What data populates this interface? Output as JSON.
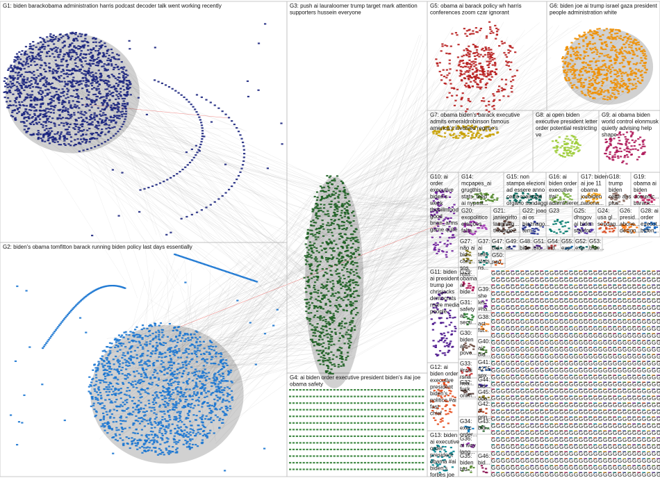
{
  "groups": [
    {
      "id": "g1",
      "label_lines": [
        "G1: biden barackobama administration harris podcast decoder talk went working recently"
      ],
      "color": "#1a237e"
    },
    {
      "id": "g2",
      "label_lines": [
        "G2: biden's obama tomfitton barack running biden policy last days essentially"
      ],
      "color": "#1976d2"
    },
    {
      "id": "g3",
      "label_lines": [
        "G3: push ai lauraloomer trump target mark attention",
        "supporters hussein everyone"
      ],
      "color": "#1b5e20"
    },
    {
      "id": "g4",
      "label_lines": [
        "G4: ai biden order executive president biden's #ai joe",
        "obama safety"
      ],
      "color": "#2e7d32"
    },
    {
      "id": "g5",
      "label_lines": [
        "G5: obama ai barack policy wh harris",
        "conferences zoom czar ignorant"
      ],
      "color": "#b71c1c"
    },
    {
      "id": "g6",
      "label_lines": [
        "G6: biden joe ai trump israel gaza president",
        "people administration white"
      ],
      "color": "#ef8f00"
    },
    {
      "id": "g7",
      "label_lines": [
        "G7: obama biden's barack executive",
        "admits emeraldrobinson famous",
        "america's involved regime's"
      ],
      "color": "#c8a000"
    },
    {
      "id": "g8",
      "label_lines": [
        "G8: ai open biden",
        "executive president letter",
        "order potential restricting",
        "ve"
      ],
      "color": "#9ccc35"
    },
    {
      "id": "g9",
      "label_lines": [
        "G9: ai obama biden",
        "world control elonmusk",
        "quietly advising help",
        "shape"
      ],
      "color": "#ad1457"
    },
    {
      "id": "g10",
      "label_lines": [
        "G10: ai",
        "order",
        "executive",
        "biden's",
        "week",
        "thebillmood",
        "good",
        "brian_arms",
        "game quite"
      ],
      "color": "#6a1b9a"
    },
    {
      "id": "g11",
      "label_lines": [
        "G11: biden",
        "ai president",
        "trump joe",
        "chrisjacks",
        "democrats",
        "more media",
        "people"
      ],
      "color": "#4a148c"
    },
    {
      "id": "g12",
      "label_lines": [
        "G12: ai",
        "biden order",
        "executive",
        "president",
        "biden's",
        "politico #ai",
        "fast",
        "chief"
      ],
      "color": "#e64a19"
    },
    {
      "id": "g13",
      "label_lines": [
        "G13: biden",
        "ai executive",
        "order",
        "president",
        "obama #ai",
        "biden's",
        "forbes joe"
      ],
      "color": "#00838f"
    },
    {
      "id": "g14",
      "label_lines": [
        "G14:",
        "mcpapes_ai",
        "grugthis",
        "stats_feed",
        "ai nypost..."
      ],
      "color": "#558b2f"
    },
    {
      "id": "g15",
      "label_lines": [
        "G15: non",
        "stampa elezioni",
        "ad essere anno",
        "certo realizzati",
        "organo sondaggi"
      ],
      "color": "#00695c"
    },
    {
      "id": "g16",
      "label_lines": [
        "G16: ai",
        "biden order",
        "executive",
        "#ai",
        "adamthierer..."
      ],
      "color": "#7cb342"
    },
    {
      "id": "g17",
      "label_lines": [
        "G17: biden",
        "ai joe 11",
        "obama",
        "joebiden",
        "nationa..."
      ],
      "color": "#f9a825"
    },
    {
      "id": "g18",
      "label_lines": [
        "G18:",
        "trump",
        "biden",
        "cette ans",
        "plus..."
      ],
      "color": "#8d6e63"
    },
    {
      "id": "g19",
      "label_lines": [
        "G19:",
        "obama ai",
        "biden",
        "domenic...",
        "barack..."
      ],
      "color": "#c2185b"
    },
    {
      "id": "g20",
      "label_lines": [
        "G20:",
        "exopolitico",
        "eleições",
        "falta..."
      ],
      "color": "#9c27b0"
    },
    {
      "id": "g21",
      "label_lines": [
        "G21:",
        "janiegirlto",
        "laughing...",
        "thesage2..."
      ],
      "color": "#5d4037"
    },
    {
      "id": "g22",
      "label_lines": [
        "G22: joao",
        "ai os",
        "biaznago...",
        "tem..."
      ],
      "color": "#283593"
    },
    {
      "id": "g23",
      "label_lines": [
        "G23"
      ],
      "color": "#00796b"
    },
    {
      "id": "g24",
      "label_lines": [
        "G24:",
        "usa gl...",
        "sondag..."
      ],
      "color": "#d84315"
    },
    {
      "id": "g25",
      "label_lines": [
        "G25:",
        "dhsgov",
        "ai biden",
        "stanfor..."
      ],
      "color": "#512da8"
    },
    {
      "id": "g26",
      "label_lines": [
        "G26:",
        "presid...",
        "abcne...",
        "design..."
      ],
      "color": "#ff6f00"
    },
    {
      "id": "g27",
      "label_lines": [
        "G27:",
        "não ai",
        "bid...",
        "cam...",
        "sos",
        "mas..."
      ],
      "color": "#827717"
    },
    {
      "id": "g28",
      "label_lines": [
        "G28: ai",
        "order",
        "execut...",
        "biden..."
      ],
      "color": "#1565c0"
    },
    {
      "id": "g29",
      "label_lines": [
        "G29:",
        "obama",
        "ai",
        "bide..."
      ],
      "color": "#ad1457"
    },
    {
      "id": "g30",
      "label_lines": [
        "G30:",
        "biden",
        "ai",
        "povo..."
      ],
      "color": "#6d4c41"
    },
    {
      "id": "g31",
      "label_lines": [
        "G31:",
        "safety",
        "ai",
        "secu..."
      ],
      "color": "#2e7d32"
    },
    {
      "id": "g32",
      "label_lines": [
        "G32:",
        "fuck",
        "onlin..."
      ],
      "color": "#4e342e"
    },
    {
      "id": "g33",
      "label_lines": [
        "G33:",
        "#radi",
        "rsna",
        "hea..."
      ],
      "color": "#c62828"
    },
    {
      "id": "g34",
      "label_lines": [
        "G34:",
        "exec",
        "order..."
      ],
      "color": "#0277bd"
    },
    {
      "id": "g35",
      "label_lines": [
        "G35:",
        "biden",
        "bid..."
      ],
      "color": "#558b2f"
    },
    {
      "id": "g36",
      "label_lines": [
        "G36:",
        "ai way",
        "lang..."
      ],
      "color": "#8e24aa"
    },
    {
      "id": "g37",
      "label_lines": [
        "G37:",
        "ai",
        "tells",
        "stats_...",
        "ns..."
      ],
      "color": "#00897b"
    },
    {
      "id": "g38",
      "label_lines": [
        "G38:",
        "act",
        "fut..."
      ],
      "color": "#f57f17"
    },
    {
      "id": "g39",
      "label_lines": [
        "G39:",
        "she",
        "les",
        "#ha..."
      ],
      "color": "#6a1b9a"
    },
    {
      "id": "g40",
      "label_lines": [
        "G40:",
        "ai",
        "bid..."
      ],
      "color": "#33691e"
    },
    {
      "id": "g41",
      "label_lines": [
        "G41:",
        "4275",
        "spx"
      ],
      "color": "#0d47a1"
    },
    {
      "id": "g42",
      "label_lines": [
        "G42:",
        "ai",
        "prin..."
      ],
      "color": "#bf360c"
    },
    {
      "id": "g43",
      "label_lines": [
        "G43:",
        "bid..."
      ],
      "color": "#1b5e20"
    },
    {
      "id": "g44",
      "label_lines": [
        "G44:",
        "bid..."
      ],
      "color": "#311b92"
    },
    {
      "id": "g45",
      "label_lines": [
        "G45:",
        "oba..."
      ],
      "color": "#827717"
    },
    {
      "id": "g46",
      "label_lines": [
        "G46:",
        "bid..."
      ],
      "color": "#880e4f"
    },
    {
      "id": "g47",
      "label_lines": [
        "G47:",
        "bid..."
      ],
      "color": "#004d40"
    },
    {
      "id": "g48",
      "label_lines": [
        "G48:",
        "bide..."
      ],
      "color": "#3e2723"
    },
    {
      "id": "g49",
      "label_lines": [
        "G49:",
        "ai..."
      ],
      "color": "#1a237e"
    },
    {
      "id": "g50",
      "label_lines": [
        "G50:",
        "nao..."
      ],
      "color": "#e65100"
    },
    {
      "id": "g51",
      "label_lines": [
        "G51:",
        "bid..."
      ],
      "color": "#4a148c"
    },
    {
      "id": "g52",
      "label_lines": [
        "G52:",
        "exp..."
      ],
      "color": "#006064"
    },
    {
      "id": "g53",
      "label_lines": [
        "G53:",
        "bide..."
      ],
      "color": "#33691e"
    },
    {
      "id": "g54",
      "label_lines": [
        "G54:",
        "bid..."
      ],
      "color": "#b71c1c"
    },
    {
      "id": "g55",
      "label_lines": [
        "G55:",
        "exp..."
      ],
      "color": "#01579b"
    }
  ],
  "small_label": "G",
  "small_cluster_colors": [
    "#e53935",
    "#1e88e5",
    "#43a047",
    "#fb8c00",
    "#8e24aa",
    "#00897b",
    "#f4511e",
    "#3949ab",
    "#7cb342",
    "#6d4c41",
    "#d81b60",
    "#00acc1",
    "#fdd835",
    "#5e35b1",
    "#546e7a"
  ]
}
